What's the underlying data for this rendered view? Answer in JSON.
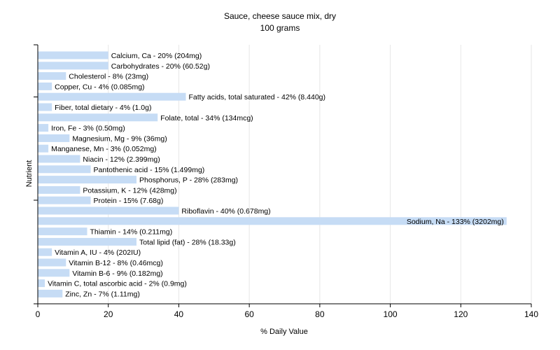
{
  "chart_data": {
    "type": "bar",
    "orientation": "horizontal",
    "title": "Sauce, cheese sauce mix, dry",
    "subtitle": "100 grams",
    "xlabel": "% Daily Value",
    "ylabel": "Nutrient",
    "xlim": [
      0,
      140
    ],
    "xticks": [
      0,
      20,
      40,
      60,
      80,
      100,
      120,
      140
    ],
    "grid": true,
    "bar_color": "#c6dcf5",
    "categories": [
      "Calcium, Ca",
      "Carbohydrates",
      "Cholesterol",
      "Copper, Cu",
      "Fatty acids, total saturated",
      "Fiber, total dietary",
      "Folate, total",
      "Iron, Fe",
      "Magnesium, Mg",
      "Manganese, Mn",
      "Niacin",
      "Pantothenic acid",
      "Phosphorus, P",
      "Potassium, K",
      "Protein",
      "Riboflavin",
      "Sodium, Na",
      "Thiamin",
      "Total lipid (fat)",
      "Vitamin A, IU",
      "Vitamin B-12",
      "Vitamin B-6",
      "Vitamin C, total ascorbic acid",
      "Zinc, Zn"
    ],
    "values": [
      20,
      20,
      8,
      4,
      42,
      4,
      34,
      3,
      9,
      3,
      12,
      15,
      28,
      12,
      15,
      40,
      133,
      14,
      28,
      4,
      8,
      9,
      2,
      7
    ],
    "labels": [
      "Calcium, Ca - 20% (204mg)",
      "Carbohydrates - 20% (60.52g)",
      "Cholesterol - 8% (23mg)",
      "Copper, Cu - 4% (0.085mg)",
      "Fatty acids, total saturated - 42% (8.440g)",
      "Fiber, total dietary - 4% (1.0g)",
      "Folate, total - 34% (134mcg)",
      "Iron, Fe - 3% (0.50mg)",
      "Magnesium, Mg - 9% (36mg)",
      "Manganese, Mn - 3% (0.052mg)",
      "Niacin - 12% (2.399mg)",
      "Pantothenic acid - 15% (1.499mg)",
      "Phosphorus, P - 28% (283mg)",
      "Potassium, K - 12% (428mg)",
      "Protein - 15% (7.68g)",
      "Riboflavin - 40% (0.678mg)",
      "Sodium, Na - 133% (3202mg)",
      "Thiamin - 14% (0.211mg)",
      "Total lipid (fat) - 28% (18.33g)",
      "Vitamin A, IU - 4% (202IU)",
      "Vitamin B-12 - 8% (0.46mcg)",
      "Vitamin B-6 - 9% (0.182mg)",
      "Vitamin C, total ascorbic acid - 2% (0.9mg)",
      "Zinc, Zn - 7% (1.11mg)"
    ]
  }
}
